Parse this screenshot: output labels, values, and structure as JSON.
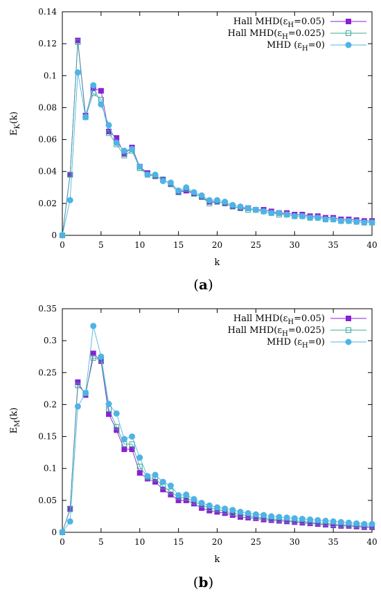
{
  "chart_data": [
    {
      "type": "line",
      "panel_label": "a",
      "ylabel": "E",
      "ylabel_sub": "K",
      "ylabel_suffix": "(k)",
      "xlabel": "k",
      "xlim": [
        0,
        40
      ],
      "ylim": [
        0,
        0.14
      ],
      "xticks": [
        0,
        5,
        10,
        15,
        20,
        25,
        30,
        35,
        40
      ],
      "yticks": [
        0,
        0.02,
        0.04,
        0.06,
        0.08,
        0.1,
        0.12,
        0.14
      ],
      "ytick_labels": [
        "0",
        "0.02",
        "0.04",
        "0.06",
        "0.08",
        "0.1",
        "0.12",
        "0.14"
      ],
      "legend_position": "top-right",
      "series": [
        {
          "name": "Hall MHD(ε",
          "name_sub": "H",
          "name_suffix": "=0.05)",
          "color": "#8a1fd6",
          "marker": "filled-square",
          "x": [
            0,
            1,
            2,
            3,
            4,
            5,
            6,
            7,
            8,
            9,
            10,
            11,
            12,
            13,
            14,
            15,
            16,
            17,
            18,
            19,
            20,
            21,
            22,
            23,
            24,
            25,
            26,
            27,
            28,
            29,
            30,
            31,
            32,
            33,
            34,
            35,
            36,
            37,
            38,
            39,
            40
          ],
          "values": [
            0,
            0.038,
            0.122,
            0.075,
            0.092,
            0.0905,
            0.065,
            0.061,
            0.051,
            0.055,
            0.043,
            0.039,
            0.037,
            0.035,
            0.032,
            0.027,
            0.028,
            0.026,
            0.024,
            0.021,
            0.021,
            0.02,
            0.018,
            0.017,
            0.017,
            0.016,
            0.016,
            0.015,
            0.014,
            0.014,
            0.013,
            0.013,
            0.012,
            0.012,
            0.011,
            0.011,
            0.01,
            0.01,
            0.0095,
            0.009,
            0.009
          ]
        },
        {
          "name": "Hall MHD(ε",
          "name_sub": "H",
          "name_suffix": "=0.025)",
          "color": "#3aa896",
          "marker": "open-square",
          "x": [
            0,
            1,
            2,
            3,
            4,
            5,
            6,
            7,
            8,
            9,
            10,
            11,
            12,
            13,
            14,
            15,
            16,
            17,
            18,
            19,
            20,
            21,
            22,
            23,
            24,
            25,
            26,
            27,
            28,
            29,
            30,
            31,
            32,
            33,
            34,
            35,
            36,
            37,
            38,
            39,
            40
          ],
          "values": [
            0,
            0.038,
            0.121,
            0.074,
            0.089,
            0.085,
            0.064,
            0.057,
            0.05,
            0.053,
            0.042,
            0.038,
            0.037,
            0.035,
            0.032,
            0.027,
            0.029,
            0.026,
            0.024,
            0.02,
            0.021,
            0.02,
            0.018,
            0.017,
            0.016,
            0.016,
            0.015,
            0.014,
            0.013,
            0.013,
            0.012,
            0.012,
            0.011,
            0.011,
            0.01,
            0.01,
            0.009,
            0.009,
            0.0085,
            0.008,
            0.008
          ]
        },
        {
          "name": "MHD (ε",
          "name_sub": "H",
          "name_suffix": "=0)",
          "color": "#4fb3e6",
          "marker": "filled-circle",
          "x": [
            0,
            1,
            2,
            3,
            4,
            5,
            6,
            7,
            8,
            9,
            10,
            11,
            12,
            13,
            14,
            15,
            16,
            17,
            18,
            19,
            20,
            21,
            22,
            23,
            24,
            25,
            26,
            27,
            28,
            29,
            30,
            31,
            32,
            33,
            34,
            35,
            36,
            37,
            38,
            39,
            40
          ],
          "values": [
            0,
            0.022,
            0.102,
            0.074,
            0.094,
            0.082,
            0.069,
            0.058,
            0.053,
            0.054,
            0.043,
            0.038,
            0.038,
            0.034,
            0.033,
            0.028,
            0.03,
            0.027,
            0.025,
            0.022,
            0.022,
            0.021,
            0.019,
            0.018,
            0.017,
            0.016,
            0.015,
            0.014,
            0.014,
            0.013,
            0.012,
            0.012,
            0.011,
            0.011,
            0.01,
            0.01,
            0.009,
            0.009,
            0.0085,
            0.008,
            0.008
          ]
        }
      ]
    },
    {
      "type": "line",
      "panel_label": "b",
      "ylabel": "E",
      "ylabel_sub": "M",
      "ylabel_suffix": "(k)",
      "xlabel": "k",
      "xlim": [
        0,
        40
      ],
      "ylim": [
        0,
        0.35
      ],
      "xticks": [
        0,
        5,
        10,
        15,
        20,
        25,
        30,
        35,
        40
      ],
      "yticks": [
        0,
        0.05,
        0.1,
        0.15,
        0.2,
        0.25,
        0.3,
        0.35
      ],
      "ytick_labels": [
        "0",
        "0.05",
        "0.1",
        "0.15",
        "0.2",
        "0.25",
        "0.3",
        "0.35"
      ],
      "legend_position": "top-right",
      "series": [
        {
          "name": "Hall MHD(ε",
          "name_sub": "H",
          "name_suffix": "=0.05)",
          "color": "#8a1fd6",
          "marker": "filled-square",
          "x": [
            0,
            1,
            2,
            3,
            4,
            5,
            6,
            7,
            8,
            9,
            10,
            11,
            12,
            13,
            14,
            15,
            16,
            17,
            18,
            19,
            20,
            21,
            22,
            23,
            24,
            25,
            26,
            27,
            28,
            29,
            30,
            31,
            32,
            33,
            34,
            35,
            36,
            37,
            38,
            39,
            40
          ],
          "values": [
            0,
            0.037,
            0.235,
            0.215,
            0.28,
            0.268,
            0.185,
            0.16,
            0.13,
            0.13,
            0.093,
            0.084,
            0.079,
            0.067,
            0.059,
            0.05,
            0.05,
            0.045,
            0.038,
            0.034,
            0.032,
            0.03,
            0.027,
            0.024,
            0.023,
            0.022,
            0.02,
            0.019,
            0.018,
            0.017,
            0.016,
            0.015,
            0.014,
            0.013,
            0.012,
            0.011,
            0.01,
            0.01,
            0.009,
            0.008,
            0.008
          ]
        },
        {
          "name": "Hall MHD(ε",
          "name_sub": "H",
          "name_suffix": "=0.025)",
          "color": "#3aa896",
          "marker": "open-square",
          "x": [
            0,
            1,
            2,
            3,
            4,
            5,
            6,
            7,
            8,
            9,
            10,
            11,
            12,
            13,
            14,
            15,
            16,
            17,
            18,
            19,
            20,
            21,
            22,
            23,
            24,
            25,
            26,
            27,
            28,
            29,
            30,
            31,
            32,
            33,
            34,
            35,
            36,
            37,
            38,
            39,
            40
          ],
          "values": [
            0,
            0.036,
            0.23,
            0.218,
            0.273,
            0.27,
            0.193,
            0.165,
            0.138,
            0.138,
            0.103,
            0.086,
            0.084,
            0.072,
            0.064,
            0.055,
            0.054,
            0.048,
            0.043,
            0.038,
            0.036,
            0.033,
            0.03,
            0.028,
            0.026,
            0.024,
            0.023,
            0.021,
            0.02,
            0.019,
            0.018,
            0.017,
            0.016,
            0.015,
            0.014,
            0.013,
            0.012,
            0.012,
            0.011,
            0.01,
            0.01
          ]
        },
        {
          "name": "MHD (ε",
          "name_sub": "H",
          "name_suffix": "=0)",
          "color": "#4fb3e6",
          "marker": "filled-circle",
          "x": [
            0,
            1,
            2,
            3,
            4,
            5,
            6,
            7,
            8,
            9,
            10,
            11,
            12,
            13,
            14,
            15,
            16,
            17,
            18,
            19,
            20,
            21,
            22,
            23,
            24,
            25,
            26,
            27,
            28,
            29,
            30,
            31,
            32,
            33,
            34,
            35,
            36,
            37,
            38,
            39,
            40
          ],
          "values": [
            0,
            0.017,
            0.197,
            0.218,
            0.323,
            0.275,
            0.201,
            0.186,
            0.146,
            0.15,
            0.117,
            0.088,
            0.09,
            0.079,
            0.073,
            0.058,
            0.059,
            0.052,
            0.046,
            0.042,
            0.039,
            0.037,
            0.035,
            0.032,
            0.03,
            0.028,
            0.027,
            0.025,
            0.024,
            0.023,
            0.022,
            0.021,
            0.02,
            0.019,
            0.018,
            0.017,
            0.016,
            0.015,
            0.014,
            0.013,
            0.013
          ]
        }
      ]
    }
  ]
}
